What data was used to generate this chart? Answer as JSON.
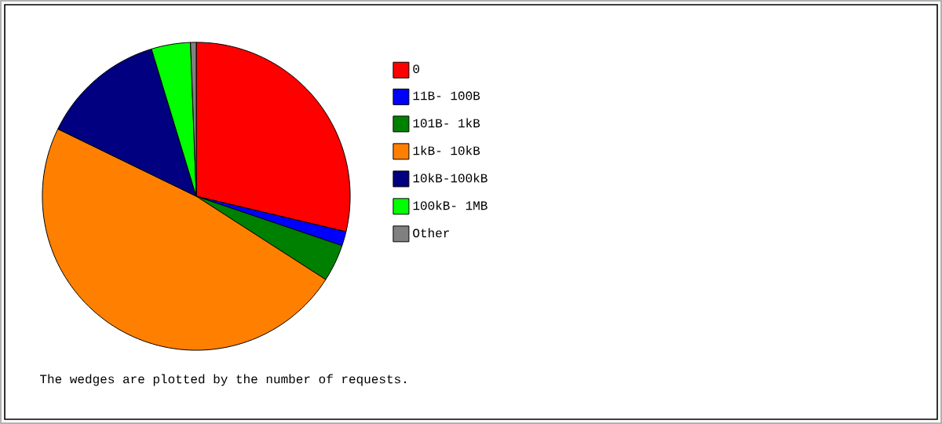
{
  "chart_data": {
    "type": "pie",
    "categories": [
      "0",
      "11B- 100B",
      "101B- 1kB",
      "1kB- 10kB",
      "10kB-100kB",
      "100kB- 1MB",
      "Other"
    ],
    "values": [
      28.7,
      1.5,
      3.9,
      48.1,
      13.1,
      4.1,
      0.6
    ],
    "colors": [
      "#ff0000",
      "#0000ff",
      "#008000",
      "#ff8000",
      "#000080",
      "#00ff00",
      "#808080"
    ],
    "legend": "right",
    "annotations": [
      "The wedges are plotted by the number of requests."
    ]
  }
}
